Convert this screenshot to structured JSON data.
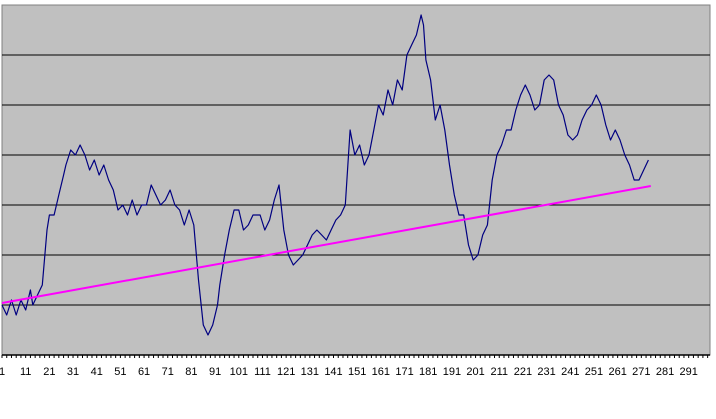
{
  "chart_data": {
    "type": "line",
    "title": "",
    "xlabel": "",
    "ylabel": "",
    "x_tick_labels": [
      "1",
      "11",
      "21",
      "31",
      "41",
      "51",
      "61",
      "71",
      "81",
      "91",
      "101",
      "111",
      "121",
      "131",
      "141",
      "151",
      "161",
      "171",
      "181",
      "191",
      "201",
      "211",
      "221",
      "231",
      "241",
      "251",
      "261",
      "271",
      "281",
      "291"
    ],
    "xlim": [
      1,
      300
    ],
    "ylim": [
      -1,
      6
    ],
    "grid": true,
    "legend": "none",
    "colors": {
      "plot_area": "#c0c0c0",
      "gridline": "#000000",
      "axis": "#000000"
    },
    "series": [
      {
        "color": "#000080",
        "x": [
          1,
          3,
          5,
          7,
          9,
          11,
          13,
          14,
          16,
          18,
          20,
          21,
          23,
          25,
          27,
          28,
          30,
          32,
          34,
          36,
          38,
          40,
          42,
          44,
          46,
          48,
          50,
          52,
          54,
          56,
          58,
          60,
          62,
          64,
          66,
          68,
          70,
          72,
          74,
          76,
          78,
          80,
          82,
          84,
          86,
          88,
          90,
          91,
          92,
          93,
          95,
          97,
          99,
          101,
          103,
          105,
          107,
          110,
          112,
          114,
          116,
          118,
          120,
          122,
          124,
          126,
          128,
          130,
          132,
          134,
          136,
          138,
          140,
          142,
          144,
          146,
          148,
          150,
          152,
          154,
          156,
          158,
          160,
          162,
          164,
          166,
          168,
          170,
          172,
          174,
          176,
          178,
          179,
          180,
          182,
          184,
          186,
          188,
          190,
          192,
          194,
          196,
          198,
          200,
          202,
          204,
          206,
          208,
          210,
          212,
          214,
          216,
          218,
          220,
          222,
          224,
          226,
          228,
          230,
          232,
          234,
          236,
          238,
          240,
          242,
          244,
          246,
          248,
          250,
          252,
          254,
          256,
          258,
          260,
          262,
          264,
          266,
          268,
          270,
          272,
          274
        ],
        "values": [
          0,
          -0.2,
          0.1,
          -0.2,
          0.1,
          -0.1,
          0.3,
          0,
          0.2,
          0.4,
          1.5,
          1.8,
          1.8,
          2.2,
          2.6,
          2.8,
          3.1,
          3.0,
          3.2,
          3.0,
          2.7,
          2.9,
          2.6,
          2.8,
          2.5,
          2.3,
          1.9,
          2.0,
          1.8,
          2.1,
          1.8,
          2.0,
          2.0,
          2.4,
          2.2,
          2.0,
          2.1,
          2.3,
          2.0,
          1.9,
          1.6,
          1.9,
          1.6,
          0.5,
          -0.4,
          -0.6,
          -0.4,
          -0.2,
          0,
          0.4,
          1.0,
          1.5,
          1.9,
          1.9,
          1.5,
          1.6,
          1.8,
          1.8,
          1.5,
          1.7,
          2.1,
          2.4,
          1.5,
          1.0,
          0.8,
          0.9,
          1.0,
          1.2,
          1.4,
          1.5,
          1.4,
          1.3,
          1.5,
          1.7,
          1.8,
          2.0,
          3.5,
          3.0,
          3.2,
          2.8,
          3.0,
          3.5,
          4.0,
          3.8,
          4.3,
          4.0,
          4.5,
          4.3,
          5.0,
          5.2,
          5.4,
          5.8,
          5.6,
          4.9,
          4.5,
          3.7,
          4.0,
          3.5,
          2.8,
          2.2,
          1.8,
          1.8,
          1.2,
          0.9,
          1.0,
          1.4,
          1.6,
          2.5,
          3.0,
          3.2,
          3.5,
          3.5,
          3.9,
          4.2,
          4.4,
          4.2,
          3.9,
          4.0,
          4.5,
          4.6,
          4.5,
          4.0,
          3.8,
          3.4,
          3.3,
          3.4,
          3.7,
          3.9,
          4.0,
          4.2,
          4.0,
          3.6,
          3.3,
          3.5,
          3.3,
          3.0,
          2.8,
          2.5,
          2.5,
          2.7,
          2.9
        ]
      },
      {
        "color": "#ff00ff",
        "x": [
          1,
          275
        ],
        "values": [
          0.04,
          2.38
        ]
      }
    ]
  }
}
